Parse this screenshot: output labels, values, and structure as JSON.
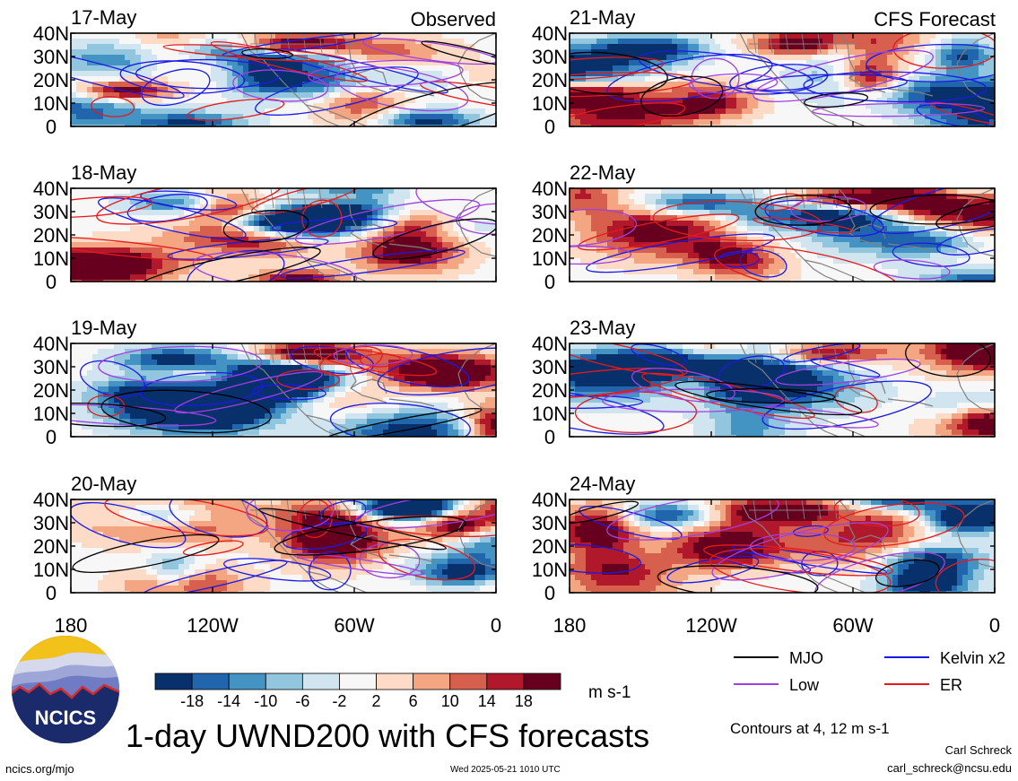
{
  "header": {
    "observed_label": "Observed",
    "forecast_label": "CFS Forecast"
  },
  "title": "1-day UWND200 with CFS forecasts",
  "units": "m s-1",
  "contours_note": "Contours at 4, 12 m s-1",
  "footer": {
    "url": "ncics.org/mjo",
    "timestamp": "Wed 2025-05-21 1010 UTC",
    "author": "Carl Schreck",
    "email": "carl_schreck@ncsu.edu"
  },
  "logo": {
    "text": "NCICS"
  },
  "colors": {
    "mjo": "#000000",
    "kelvin": "#1a1ae6",
    "low": "#a040e0",
    "er": "#e61a1a",
    "land": "#808080"
  },
  "colorbar": {
    "ticks": [
      "-18",
      "-14",
      "-10",
      "-6",
      "-2",
      "2",
      "6",
      "10",
      "14",
      "18"
    ],
    "colors": [
      "#08306b",
      "#2166ac",
      "#4393c3",
      "#92c5de",
      "#d1e5f0",
      "#f7f7f7",
      "#fddbc7",
      "#f4a582",
      "#d6604d",
      "#b2182b",
      "#67001f"
    ]
  },
  "legend": [
    {
      "label": "MJO",
      "color": "#000000"
    },
    {
      "label": "Kelvin x2",
      "color": "#1a1ae6"
    },
    {
      "label": "Low",
      "color": "#a040e0"
    },
    {
      "label": "ER",
      "color": "#e61a1a"
    }
  ],
  "chart_data": {
    "type": "heatmap",
    "variable": "200-hPa zonal wind (UWND200)",
    "units": "m s-1",
    "x_ticks": [
      "180",
      "120W",
      "60W",
      "0"
    ],
    "y_ticks": [
      "0",
      "10N",
      "20N",
      "30N",
      "40N"
    ],
    "xlim": [
      -180,
      0
    ],
    "ylim": [
      0,
      40
    ],
    "contour_levels": [
      4,
      12
    ],
    "panels": [
      {
        "date": "17-May",
        "source": "Observed"
      },
      {
        "date": "18-May",
        "source": "Observed"
      },
      {
        "date": "19-May",
        "source": "Observed"
      },
      {
        "date": "20-May",
        "source": "Observed"
      },
      {
        "date": "21-May",
        "source": "CFS Forecast"
      },
      {
        "date": "22-May",
        "source": "CFS Forecast"
      },
      {
        "date": "23-May",
        "source": "CFS Forecast"
      },
      {
        "date": "24-May",
        "source": "CFS Forecast"
      }
    ]
  }
}
